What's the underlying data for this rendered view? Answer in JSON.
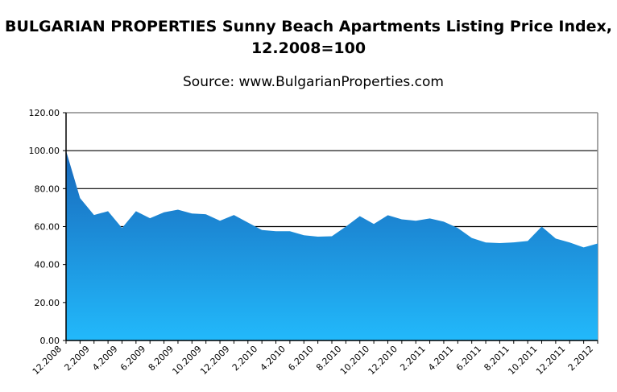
{
  "chart_data": {
    "type": "area",
    "title": "BULGARIAN PROPERTIES Sunny Beach Apartments Listing Price Index, 12.2008=100",
    "subtitle": "Source: www.BulgarianProperties.com",
    "xlabel": "",
    "ylabel": "",
    "ylim": [
      0,
      120
    ],
    "yticks": [
      "0.00",
      "20.00",
      "40.00",
      "60.00",
      "80.00",
      "100.00",
      "120.00"
    ],
    "grid": true,
    "legend": "none",
    "x": [
      "12.2008",
      "1.2009",
      "2.2009",
      "3.2009",
      "4.2009",
      "5.2009",
      "6.2009",
      "7.2009",
      "8.2009",
      "9.2009",
      "10.2009",
      "11.2009",
      "12.2009",
      "1.2010",
      "2.2010",
      "3.2010",
      "4.2010",
      "5.2010",
      "6.2010",
      "7.2010",
      "8.2010",
      "9.2010",
      "10.2010",
      "11.2010",
      "12.2010",
      "1.2011",
      "2.2011",
      "3.2011",
      "4.2011",
      "5.2011",
      "6.2011",
      "7.2011",
      "8.2011",
      "9.2011",
      "10.2011",
      "11.2011",
      "12.2011",
      "1.2012",
      "2.2012"
    ],
    "xtick_labels": [
      "12.2008",
      "2.2009",
      "4.2009",
      "6.2009",
      "8.2009",
      "10.2009",
      "12.2009",
      "2.2010",
      "4.2010",
      "6.2010",
      "8.2010",
      "10.2010",
      "12.2010",
      "2.2011",
      "4.2011",
      "6.2011",
      "8.2011",
      "10.2011",
      "12.2011",
      "2.2012"
    ],
    "values": [
      100,
      75,
      66.1,
      68.1,
      59.3,
      68.1,
      64.4,
      67.5,
      68.9,
      66.9,
      66.5,
      63.1,
      66.1,
      62.1,
      58.2,
      57.6,
      57.6,
      55.4,
      54.7,
      54.9,
      60.0,
      65.5,
      61.4,
      66.0,
      63.8,
      63.1,
      64.3,
      62.6,
      59.3,
      54.0,
      51.6,
      51.3,
      51.7,
      52.4,
      60.0,
      53.7,
      51.6,
      49.0,
      51.1
    ],
    "colors": {
      "fill_top": "#1868bb",
      "fill_bottom": "#22b9fb",
      "grid": "#000000",
      "border": "#888888"
    }
  }
}
